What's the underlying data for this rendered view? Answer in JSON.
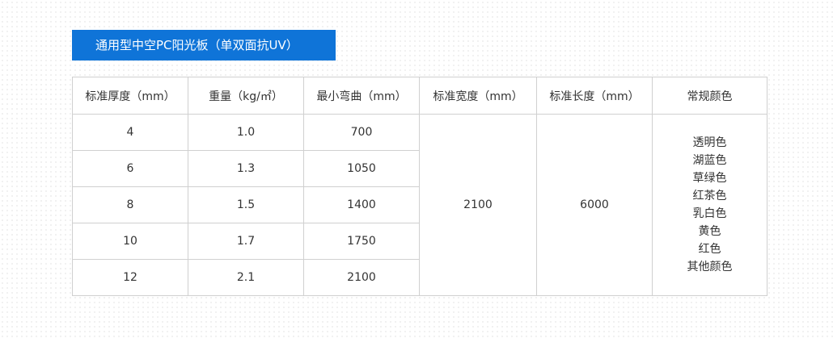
{
  "title": "通用型中空PC阳光板（单双面抗UV）",
  "table": {
    "headers": [
      "标准厚度（mm）",
      "重量（kg/㎡）",
      "最小弯曲（mm）",
      "标准宽度（mm）",
      "标准长度（mm）",
      "常规颜色"
    ],
    "rows": [
      [
        "4",
        "1.0",
        "700"
      ],
      [
        "6",
        "1.3",
        "1050"
      ],
      [
        "8",
        "1.5",
        "1400"
      ],
      [
        "10",
        "1.7",
        "1750"
      ],
      [
        "12",
        "2.1",
        "2100"
      ]
    ],
    "width": "2100",
    "length": "6000",
    "colors": [
      "透明色",
      "湖蓝色",
      "草绿色",
      "红茶色",
      "乳白色",
      "黄色",
      "红色",
      "其他颜色"
    ]
  },
  "accent": "#0f74d8"
}
